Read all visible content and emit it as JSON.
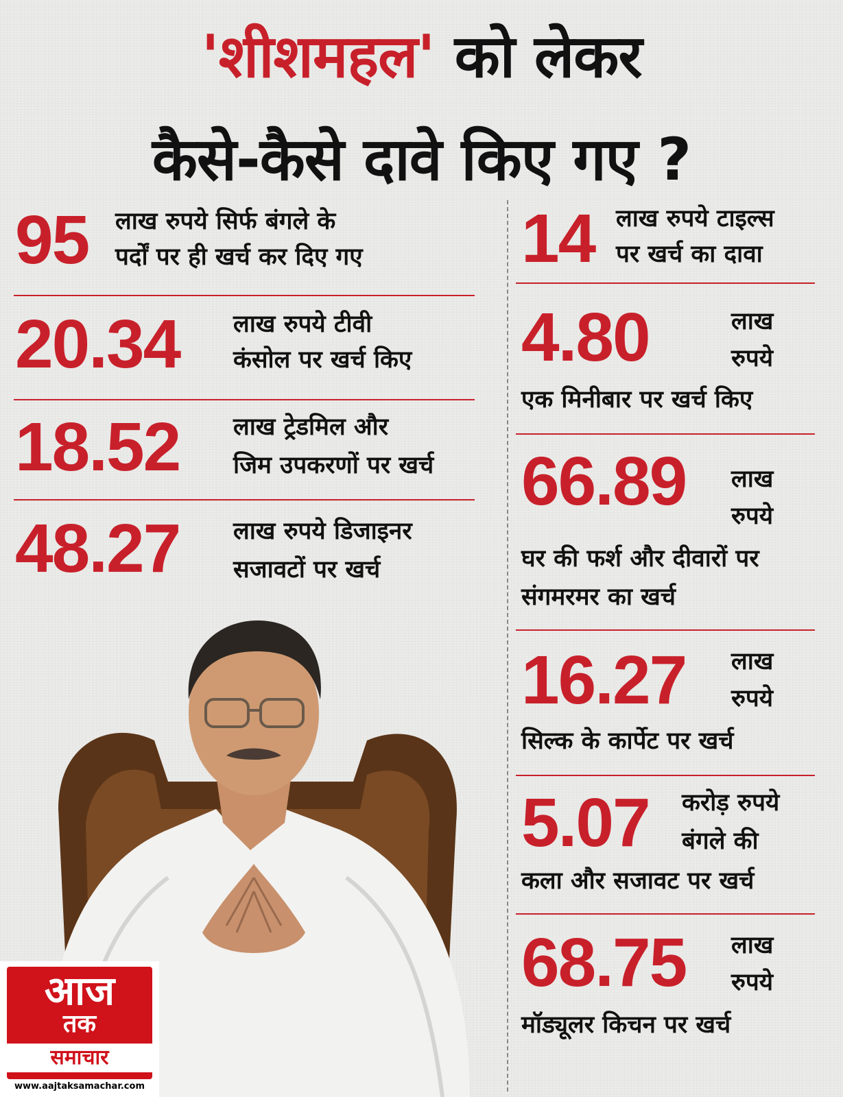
{
  "title": {
    "line1_accent": "'शीशमहल'",
    "line1_rest": "को लेकर",
    "line2": "कैसे-कैसे दावे किए गए ?"
  },
  "left_items": [
    {
      "number": "95",
      "text_lines": [
        "लाख रुपये सिर्फ बंगले के",
        "पर्दों पर ही खर्च कर दिए गए"
      ]
    },
    {
      "number": "20.34",
      "text_lines": [
        "लाख रुपये टीवी",
        "कंसोल पर खर्च किए"
      ]
    },
    {
      "number": "18.52",
      "text_lines": [
        "लाख ट्रेडमिल और",
        "जिम उपकरणों पर खर्च"
      ]
    },
    {
      "number": "48.27",
      "text_lines": [
        "लाख रुपये डिजाइनर",
        "सजावटों पर खर्च"
      ]
    }
  ],
  "right_items": [
    {
      "number": "14",
      "side_lines": [
        "लाख रुपये टाइल्स",
        "पर खर्च का दावा"
      ],
      "below_lines": []
    },
    {
      "number": "4.80",
      "side_lines": [
        "लाख",
        "रुपये"
      ],
      "below_lines": [
        "एक मिनीबार पर खर्च किए"
      ]
    },
    {
      "number": "66.89",
      "side_lines": [
        "लाख",
        "रुपये"
      ],
      "below_lines": [
        "घर की फर्श और दीवारों पर",
        "संगमरमर का खर्च"
      ]
    },
    {
      "number": "16.27",
      "side_lines": [
        "लाख",
        "रुपये"
      ],
      "below_lines": [
        "सिल्क के कार्पेट पर खर्च"
      ]
    },
    {
      "number": "5.07",
      "side_lines": [
        "करोड़ रुपये",
        "बंगले की"
      ],
      "below_lines": [
        "कला और सजावट पर खर्च"
      ]
    },
    {
      "number": "68.75",
      "side_lines": [
        "लाख",
        "रुपये"
      ],
      "below_lines": [
        "मॉड्यूलर किचन पर खर्च"
      ]
    }
  ],
  "logo": {
    "line1": "आज",
    "line2": "तक",
    "line3": "समाचार",
    "url": "www.aajtaksamachar.com"
  },
  "colors": {
    "accent": "#c8202a",
    "logo_red": "#d0121b",
    "background": "#ebebe9"
  }
}
